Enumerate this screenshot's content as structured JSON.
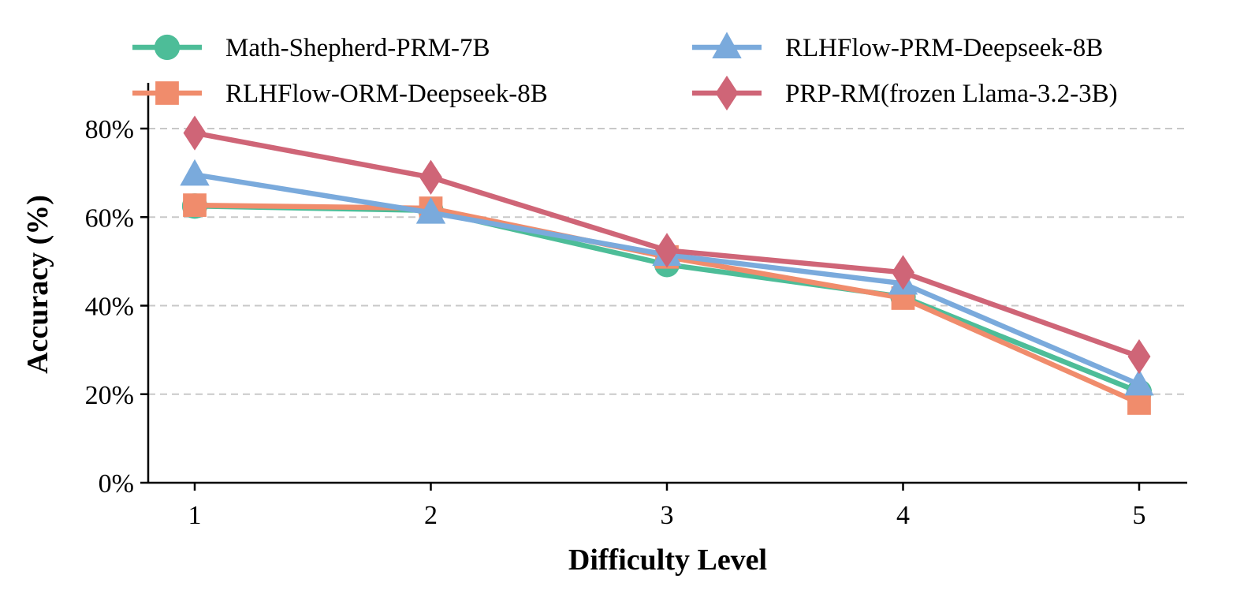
{
  "chart_data": {
    "type": "line",
    "title": "",
    "xlabel": "Difficulty Level",
    "ylabel": "Accuracy (%)",
    "x": [
      1,
      2,
      3,
      4,
      5
    ],
    "x_tick_labels": [
      "1",
      "2",
      "3",
      "4",
      "5"
    ],
    "xlim": [
      0.8,
      5.2
    ],
    "ylim": [
      0,
      90
    ],
    "y_ticks": [
      0,
      20,
      40,
      60,
      80
    ],
    "y_tick_labels": [
      "0%",
      "20%",
      "40%",
      "60%",
      "80%"
    ],
    "grid": "horizontal dashed",
    "legend": "top, two columns",
    "series": [
      {
        "name": "Math-Shepherd-PRM-7B",
        "color": "#4dbd98",
        "marker": "circle",
        "values": [
          62.5,
          61.5,
          49.3,
          42.0,
          20.5
        ]
      },
      {
        "name": "RLHFlow-ORM-Deepseek-8B",
        "color": "#f08c6c",
        "marker": "square",
        "values": [
          62.7,
          62.0,
          51.0,
          41.7,
          18.0
        ]
      },
      {
        "name": "RLHFlow-PRM-Deepseek-8B",
        "color": "#7aaadc",
        "marker": "triangle",
        "values": [
          69.6,
          61.0,
          51.5,
          45.0,
          22.2
        ]
      },
      {
        "name": "PRP-RM(frozen Llama-3.2-3B)",
        "color": "#cf6577",
        "marker": "diamond",
        "values": [
          79.0,
          69.0,
          52.5,
          47.5,
          28.5
        ]
      }
    ]
  }
}
